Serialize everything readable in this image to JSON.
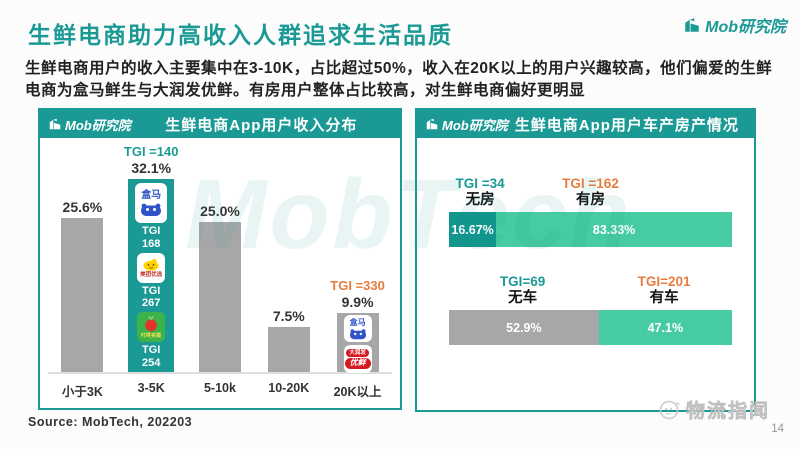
{
  "colors": {
    "teal": "#1b9a95",
    "mint_segment": "#46cba2",
    "dark_teal_segment": "#11958d",
    "gray_bar": "#a7a7a7",
    "orange_tgi": "#e87c3c"
  },
  "page": {
    "brand": "Mob研究院",
    "title": "生鲜电商助力高收入人群追求生活品质",
    "intro": "生鲜电商用户的收入主要集中在3-10K，占比超过50%，收入在20K以上的用户兴趣较高，他们偏爱的生鲜电商为盒马鲜生与大润发优鲜。有房用户整体占比较高，对生鲜电商偏好更明显",
    "watermark": "MobTech",
    "source": "Source: MobTech, 202203",
    "footer_brand": "物流指闻",
    "page_number": "14"
  },
  "chart_data": [
    {
      "type": "bar",
      "title": "生鲜电商App用户收入分布",
      "brand": "Mob研究院",
      "categories": [
        "小于3K",
        "3-5K",
        "5-10k",
        "10-20K",
        "20K以上"
      ],
      "values": [
        25.6,
        32.1,
        25.0,
        7.5,
        9.9
      ],
      "value_labels": [
        "25.6%",
        "32.1%",
        "25.0%",
        "7.5%",
        "9.9%"
      ],
      "ylim": [
        0,
        35
      ],
      "tgi_word": "TGI",
      "annotations": [
        {
          "category": "3-5K",
          "label": "TGI =140",
          "color": "teal"
        },
        {
          "category": "20K以上",
          "label": "TGI =330",
          "color": "orange"
        }
      ],
      "highlight_apps": [
        {
          "app": "盒马",
          "tgi": "168"
        },
        {
          "app": "美团优选",
          "tgi": "267"
        },
        {
          "app": "叮咚买菜",
          "tgi": "254"
        }
      ],
      "top_income_apps": [
        {
          "app": "盒马"
        },
        {
          "app": "大润发优鲜",
          "line1": "大润发",
          "line2": "优鲜"
        }
      ]
    },
    {
      "type": "bar",
      "title": "生鲜电商App用户车产房产情况",
      "brand": "Mob研究院",
      "groups": [
        {
          "segments": [
            {
              "label": "无房",
              "tgi": "TGI =34",
              "value": 16.67,
              "value_label": "16.67%"
            },
            {
              "label": "有房",
              "tgi": "TGI =162",
              "value": 83.33,
              "value_label": "83.33%"
            }
          ]
        },
        {
          "segments": [
            {
              "label": "无车",
              "tgi": "TGI=69",
              "value": 52.9,
              "value_label": "52.9%"
            },
            {
              "label": "有车",
              "tgi": "TGI=201",
              "value": 47.1,
              "value_label": "47.1%"
            }
          ]
        }
      ]
    }
  ]
}
